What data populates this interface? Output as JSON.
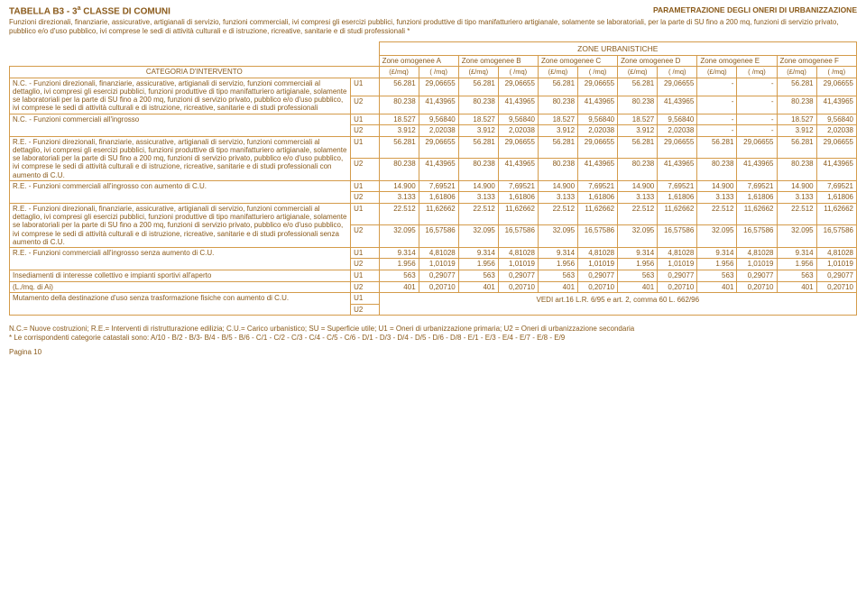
{
  "header": {
    "title_prefix": "TABELLA B3 - 3",
    "title_super": "a",
    "title_suffix": " CLASSE DI COMUNI",
    "top_right": "PARAMETRAZIONE DEGLI ONERI DI URBANIZZAZIONE",
    "subtitle": "Funzioni direzionali, finanziarie, assicurative, artigianali di servizio, funzioni commerciali, ivi compresi gli esercizi pubblici, funzioni produttive di tipo manifatturiero artigianale, solamente se laboratoriali, per la parte di SU fino a 200 mq, funzioni di servizio privato, pubblico e/o d'uso pubblico, ivi comprese le sedi di attività culturali e di istruzione, ricreative, sanitarie e di studi professionali *"
  },
  "zones": {
    "super": "ZONE URBANISTICHE",
    "labels": [
      "Zone omogenee A",
      "Zone omogenee B",
      "Zone omogenee C",
      "Zone omogenee D",
      "Zone omogenee E",
      "Zone omogenee F"
    ]
  },
  "cat_header": "CATEGORIA D'INTERVENTO",
  "unit_lira": "(£/mq)",
  "unit_euro": "(  /mq)",
  "categories": [
    {
      "text": "N.C. - Funzioni direzionali, finanziarie, assicurative, artigianali di servizio, funzioni commerciali al dettaglio, ivi compresi gli esercizi pubblici, funzioni produttive di tipo manifatturiero artigianale, solamente se laboratoriali per la parte di SU fino a 200 mq, funzioni di servizio privato, pubblico e/o d'uso pubblico, ivi comprese le sedi di attività culturali e di istruzione, ricreative, sanitarie e di studi professionali",
      "rowspan": 2,
      "rows": [
        {
          "code": "U1",
          "v": [
            "56.281",
            "29,06655",
            "56.281",
            "29,06655",
            "56.281",
            "29,06655",
            "56.281",
            "29,06655",
            "-",
            "-",
            "56.281",
            "29,06655"
          ]
        },
        {
          "code": "U2",
          "v": [
            "80.238",
            "41,43965",
            "80.238",
            "41,43965",
            "80.238",
            "41,43965",
            "80.238",
            "41,43965",
            "-",
            "-",
            "80.238",
            "41,43965"
          ]
        }
      ]
    },
    {
      "text": "N.C. - Funzioni commerciali all'ingrosso",
      "rowspan": 2,
      "rows": [
        {
          "code": "U1",
          "v": [
            "18.527",
            "9,56840",
            "18.527",
            "9,56840",
            "18.527",
            "9,56840",
            "18.527",
            "9,56840",
            "-",
            "-",
            "18.527",
            "9,56840"
          ]
        },
        {
          "code": "U2",
          "v": [
            "3.912",
            "2,02038",
            "3.912",
            "2,02038",
            "3.912",
            "2,02038",
            "3.912",
            "2,02038",
            "-",
            "-",
            "3.912",
            "2,02038"
          ]
        }
      ]
    },
    {
      "text": "R.E. - Funzioni direzionali, finanziarie, assicurative, artigianali di servizio, funzioni commerciali al dettaglio, ivi compresi gli esercizi pubblici, funzioni produttive di tipo manifatturiero artigianale, solamente se laboratoriali per la parte di SU fino a 200 mq, funzioni di servizio privato, pubblico e/o d'uso pubblico, ivi comprese le sedi di attività culturali e di istruzione, ricreative, sanitarie e di studi professionali con aumento di C.U.",
      "rowspan": 2,
      "rows": [
        {
          "code": "U1",
          "v": [
            "56.281",
            "29,06655",
            "56.281",
            "29,06655",
            "56.281",
            "29,06655",
            "56.281",
            "29,06655",
            "56.281",
            "29,06655",
            "56.281",
            "29,06655"
          ]
        },
        {
          "code": "U2",
          "v": [
            "80.238",
            "41,43965",
            "80.238",
            "41,43965",
            "80.238",
            "41,43965",
            "80.238",
            "41,43965",
            "80.238",
            "41,43965",
            "80.238",
            "41,43965"
          ]
        }
      ]
    },
    {
      "text": "R.E. - Funzioni commerciali all'ingrosso con aumento di C.U.",
      "rowspan": 2,
      "rows": [
        {
          "code": "U1",
          "v": [
            "14.900",
            "7,69521",
            "14.900",
            "7,69521",
            "14.900",
            "7,69521",
            "14.900",
            "7,69521",
            "14.900",
            "7,69521",
            "14.900",
            "7,69521"
          ]
        },
        {
          "code": "U2",
          "v": [
            "3.133",
            "1,61806",
            "3.133",
            "1,61806",
            "3.133",
            "1,61806",
            "3.133",
            "1,61806",
            "3.133",
            "1,61806",
            "3.133",
            "1,61806"
          ]
        }
      ]
    },
    {
      "text": "R.E. - Funzioni direzionali, finanziarie, assicurative, artigianali di servizio, funzioni commerciali al dettaglio, ivi compresi gli esercizi pubblici, funzioni produttive di tipo manifatturiero artigianale, solamente se laboratoriali per la parte di SU fino a 200 mq, funzioni di servizio privato, pubblico e/o d'uso pubblico, ivi comprese le sedi di attività culturali e di istruzione, ricreative, sanitarie e di studi professionali senza aumento di C.U.",
      "rowspan": 2,
      "rows": [
        {
          "code": "U1",
          "v": [
            "22.512",
            "11,62662",
            "22.512",
            "11,62662",
            "22.512",
            "11,62662",
            "22.512",
            "11,62662",
            "22.512",
            "11,62662",
            "22.512",
            "11,62662"
          ]
        },
        {
          "code": "U2",
          "v": [
            "32.095",
            "16,57586",
            "32.095",
            "16,57586",
            "32.095",
            "16,57586",
            "32.095",
            "16,57586",
            "32.095",
            "16,57586",
            "32.095",
            "16,57586"
          ]
        }
      ]
    },
    {
      "text": "R.E. - Funzioni commerciali all'ingrosso senza aumento di C.U.",
      "rowspan": 2,
      "rows": [
        {
          "code": "U1",
          "v": [
            "9.314",
            "4,81028",
            "9.314",
            "4,81028",
            "9.314",
            "4,81028",
            "9.314",
            "4,81028",
            "9.314",
            "4,81028",
            "9.314",
            "4,81028"
          ]
        },
        {
          "code": "U2",
          "v": [
            "1.956",
            "1,01019",
            "1.956",
            "1,01019",
            "1.956",
            "1,01019",
            "1.956",
            "1,01019",
            "1.956",
            "1,01019",
            "1.956",
            "1,01019"
          ]
        }
      ]
    },
    {
      "text": "Insediamenti di interesse collettivo e impianti sportivi all'aperto",
      "rowspan": 1,
      "rows": [
        {
          "code": "U1",
          "v": [
            "563",
            "0,29077",
            "563",
            "0,29077",
            "563",
            "0,29077",
            "563",
            "0,29077",
            "563",
            "0,29077",
            "563",
            "0,29077"
          ]
        }
      ]
    },
    {
      "text": "(L./mq. di Ai)",
      "rowspan": 1,
      "rows": [
        {
          "code": "U2",
          "v": [
            "401",
            "0,20710",
            "401",
            "0,20710",
            "401",
            "0,20710",
            "401",
            "0,20710",
            "401",
            "0,20710",
            "401",
            "0,20710"
          ]
        }
      ]
    },
    {
      "text": "Mutamento della destinazione d'uso senza trasformazione fisiche con aumento di C.U.",
      "rowspan": 2,
      "vedi": "VEDI art.16 L.R. 6/95 e art. 2, comma  60 L. 662/96",
      "rows": [
        {
          "code": "U1",
          "v": []
        },
        {
          "code": "U2",
          "v": []
        }
      ]
    }
  ],
  "footer": {
    "line1": "N.C.= Nuove costruzioni;  R.E.= Interventi di ristrutturazione edilizia; C.U.= Carico urbanistico; SU = Superficie utile; U1 = Oneri di urbanizzazione primaria; U2 = Oneri di urbanizzazione secondaria",
    "line2": "* Le corrispondenti categorie catastali sono: A/10 - B/2 - B/3- B/4 - B/5 - B/6 - C/1 - C/2 - C/3 - C/4 - C/5 - C/6 - D/1 - D/3 - D/4 - D/5 - D/6 - D/8 - E/1 - E/3 - E/4 - E/7 - E/8 - E/9",
    "page": "Pagina 10"
  },
  "style": {
    "text_color": "#8a5a1a",
    "border_color": "#d49b4a",
    "background": "#ffffff",
    "font_family": "Arial",
    "base_font_size_pt": 6
  }
}
